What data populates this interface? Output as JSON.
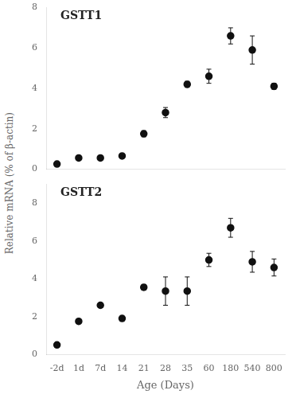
{
  "chart_data": [
    {
      "type": "line",
      "annotation": "GSTT1",
      "ylabel": "Relative mRNA (% of β-actin)",
      "categories": [
        "-2d",
        "1d",
        "7d",
        "14",
        "21",
        "28",
        "35",
        "60",
        "180",
        "540",
        "800"
      ],
      "series": [
        {
          "color": "#111111",
          "marker": "circle",
          "line_style": "none",
          "values": [
            0.25,
            0.55,
            0.55,
            0.65,
            1.75,
            2.8,
            4.2,
            4.6,
            6.6,
            5.9,
            4.1
          ],
          "errors": [
            0.05,
            0.07,
            0.05,
            0.05,
            0.15,
            0.25,
            0.15,
            0.35,
            0.4,
            0.7,
            0.15
          ]
        }
      ],
      "ylim": [
        0,
        8
      ],
      "yticks": [
        0,
        2,
        4,
        6,
        8
      ],
      "grid": false,
      "tick_labels": "y"
    },
    {
      "type": "line",
      "annotation": "GSTT2",
      "xlabel": "Age (Days)",
      "categories": [
        "-2d",
        "1d",
        "7d",
        "14",
        "21",
        "28",
        "35",
        "60",
        "180",
        "540",
        "800"
      ],
      "series": [
        {
          "color": "#111111",
          "marker": "circle",
          "line_style": "none",
          "values": [
            0.5,
            1.75,
            2.6,
            1.9,
            3.55,
            3.35,
            3.35,
            5.0,
            6.7,
            4.9,
            4.6
          ],
          "errors": [
            0.05,
            0.1,
            0.12,
            0.12,
            0.15,
            0.75,
            0.75,
            0.35,
            0.5,
            0.55,
            0.45
          ]
        }
      ],
      "ylim": [
        0,
        9
      ],
      "yticks": [
        0,
        2,
        4,
        6,
        8
      ],
      "grid": false
    }
  ]
}
